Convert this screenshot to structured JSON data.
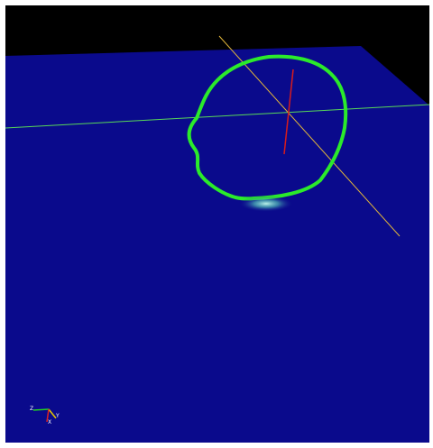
{
  "viewport": {
    "background_color": "#000000",
    "ground_plane_color": "#0a0a8c"
  },
  "scene": {
    "closed_curve": {
      "color": "#2bea2b"
    },
    "glow": {
      "color": "#b8ffe8"
    },
    "axes": {
      "x_axis_color": "#58d858",
      "y_axis_color": "#e2b63a",
      "z_axis_color": "#d81c1c"
    }
  },
  "orientation_gizmo": {
    "labels": {
      "z": "Z",
      "y": "Y",
      "x": "X"
    },
    "colors": {
      "x": "#22cc22",
      "y": "#e6c800",
      "z": "#dd2222"
    }
  }
}
